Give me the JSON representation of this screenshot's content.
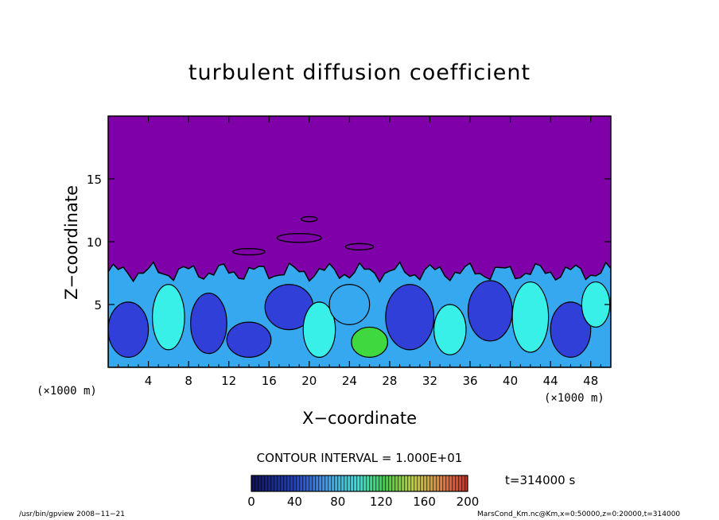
{
  "chart_data": {
    "type": "heatmap",
    "title": "turbulent diffusion coefficient",
    "xlabel": "X−coordinate",
    "ylabel": "Z−coordinate",
    "x_unit": "(×1000 m)",
    "xlim": [
      0,
      50
    ],
    "ylim": [
      0,
      20
    ],
    "x_ticks": [
      "4",
      "8",
      "12",
      "16",
      "20",
      "24",
      "28",
      "32",
      "36",
      "40",
      "44",
      "48"
    ],
    "x_tick_values": [
      4,
      8,
      12,
      16,
      20,
      24,
      28,
      32,
      36,
      40,
      44,
      48
    ],
    "y_ticks": [
      "5",
      "10",
      "15"
    ],
    "y_tick_values": [
      5,
      10,
      15
    ],
    "contour_interval": "CONTOUR INTERVAL = 1.000E+01",
    "colorbar_ticks": [
      "0",
      "40",
      "80",
      "120",
      "160",
      "200"
    ],
    "colorbar_range": [
      0,
      200
    ],
    "time_label": "t=314000 s",
    "colors": {
      "background": "#7f00a8",
      "low": "#2f3fd8",
      "mid": "#35a8f0",
      "high": "#38f0e8",
      "peak": "#3fd83f"
    }
  },
  "footer": {
    "left": "/usr/bin/gpview   2008−11−21",
    "right": "MarsCond_Km.nc@Km,x=0:50000,z=0:20000,t=314000"
  }
}
